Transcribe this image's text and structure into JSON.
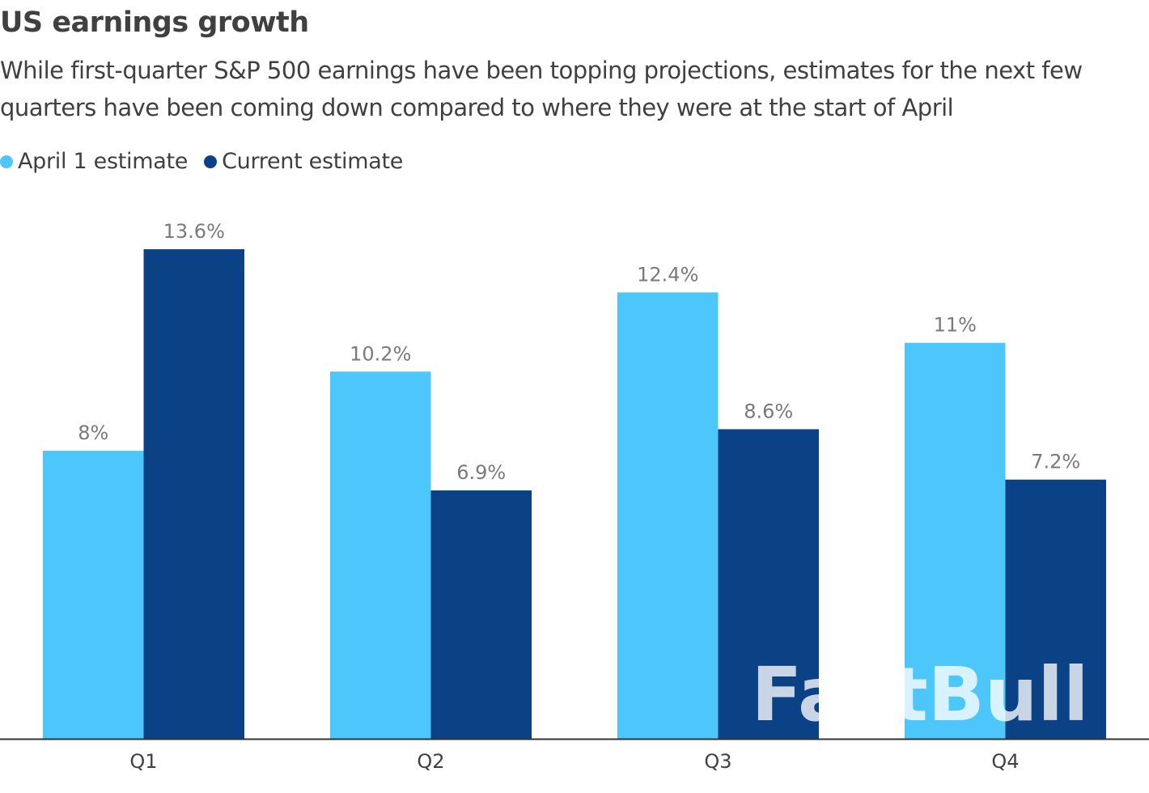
{
  "title": "US earnings growth",
  "subtitle": "While first-quarter S&P 500 earnings have been topping projections, estimates for the next few quarters have been coming down compared to where they were at the start of April",
  "watermark": "FastBull",
  "colors": {
    "april": "#4dc6fc",
    "current": "#0a4285",
    "axis": "#333333"
  },
  "legend": [
    {
      "label": "April 1 estimate",
      "color": "#4dc6fc"
    },
    {
      "label": "Current estimate",
      "color": "#0a4285"
    }
  ],
  "chart_data": {
    "type": "bar",
    "categories": [
      "Q1",
      "Q2",
      "Q3",
      "Q4"
    ],
    "series": [
      {
        "name": "April 1 estimate",
        "values": [
          8,
          10.2,
          12.4,
          11
        ],
        "labels": [
          "8%",
          "10.2%",
          "12.4%",
          "11%"
        ]
      },
      {
        "name": "Current estimate",
        "values": [
          13.6,
          6.9,
          8.6,
          7.2
        ],
        "labels": [
          "13.6%",
          "6.9%",
          "8.6%",
          "7.2%"
        ]
      }
    ],
    "title": "US earnings growth",
    "xlabel": "",
    "ylabel": "",
    "ylim": [
      0,
      13.6
    ],
    "grid": false,
    "legend_position": "top-left"
  }
}
